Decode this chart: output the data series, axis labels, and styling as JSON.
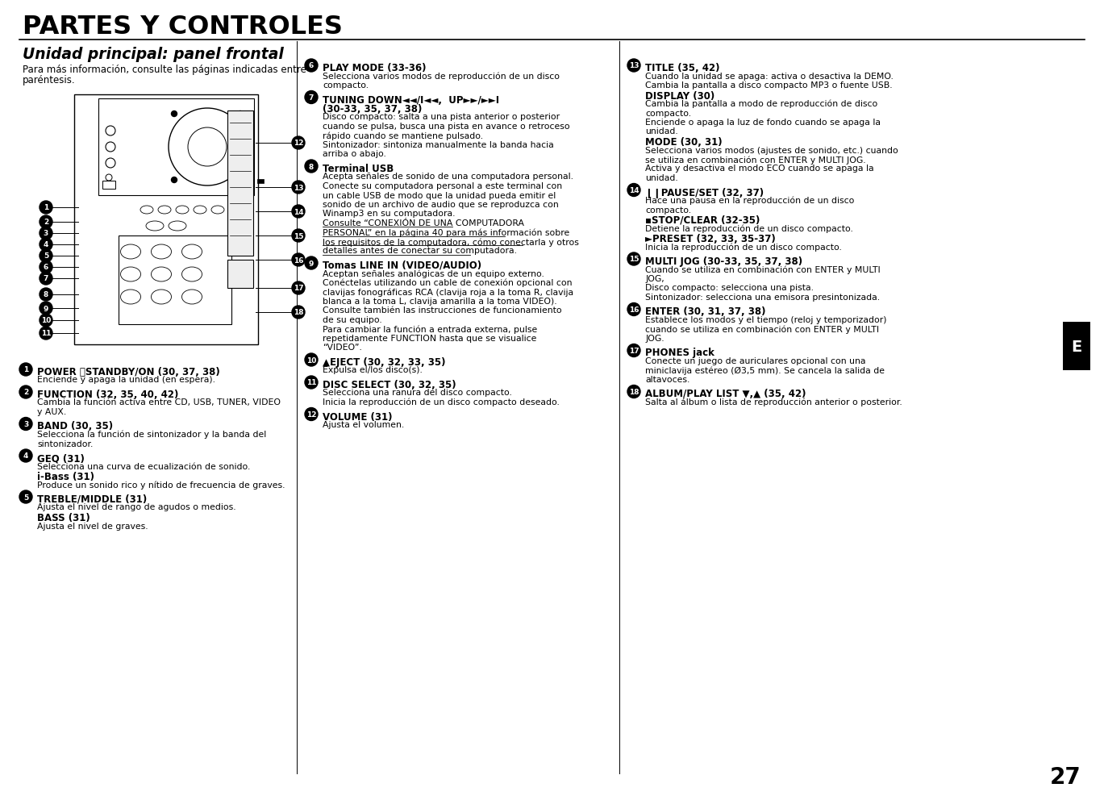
{
  "title": "PARTES Y CONTROLES",
  "subtitle": "Unidad principal: panel frontal",
  "intro": "Para más información, consulte las páginas indicadas entre\nparéntesis.",
  "page_number": "27",
  "background_color": "#ffffff",
  "col1_items": [
    {
      "num": "1",
      "header": "POWER ⏽STANDBY/ON (30, 37, 38)",
      "body": "Enciende y apaga la unidad (en espera)."
    },
    {
      "num": "2",
      "header": "FUNCTION (32, 35, 40, 42)",
      "body": "Cambia la función activa entre CD, USB, TUNER, VIDEO\ny AUX."
    },
    {
      "num": "3",
      "header": "BAND (30, 35)",
      "body": "Selecciona la función de sintonizador y la banda del\nsintonizador."
    },
    {
      "num": "4",
      "header": "GEQ (31)",
      "body": "Selecciona una curva de ecualización de sonido.",
      "subheader": "i-Bass (31)",
      "subbody": "Produce un sonido rico y nítido de frecuencia de graves."
    },
    {
      "num": "5",
      "header": "TREBLE/MIDDLE (31)",
      "body": "Ajusta el nivel de rango de agudos o medios.",
      "subheader": "BASS (31)",
      "subbody": "Ajusta el nivel de graves."
    }
  ],
  "col2_items": [
    {
      "num": "6",
      "header": "PLAY MODE (33-36)",
      "body": "Selecciona varios modos de reproducción de un disco\ncompacto."
    },
    {
      "num": "7",
      "header": "TUNING DOWN◄◄/I◄◄,  UP►►/►►I\n(30-33, 35, 37, 38)",
      "body": "Disco compacto: salta a una pista anterior o posterior\ncuando se pulsa, busca una pista en avance o retroceso\nrápido cuando se mantiene pulsado.\nSintonizador: sintoniza manualmente la banda hacia\narriba o abajo."
    },
    {
      "num": "8",
      "header": "Terminal USB",
      "body": "Acepta señales de sonido de una computadora personal.\nConecte su computadora personal a este terminal con\nun cable USB de modo que la unidad pueda emitir el\nsonido de un archivo de audio que se reproduzca con\nWinamp3 en su computadora.",
      "underline_body": "Consulte “CONEXIÓN DE UNA COMPUTADORA\nPERSONAL” en la página 40 para más información sobre\nlos requisitos de la computadora, cómo conectarla y otros\ndetalles antes de conectar su computadora."
    },
    {
      "num": "9",
      "header": "Tomas LINE IN (VIDEO/AUDIO)",
      "body": "Aceptan señales analógicas de un equipo externo.\nConéctelas utilizando un cable de conexión opcional con\nclavijas fonográficas RCA (clavija roja a la toma R, clavija\nblanca a la toma L, clavija amarilla a la toma VIDEO).\nConsulte también las instrucciones de funcionamiento\nde su equipo.\nPara cambiar la función a entrada externa, pulse\nrepetidamente FUNCTION hasta que se visualice\n“VIDEO”."
    },
    {
      "num": "10",
      "header": "▲EJECT (30, 32, 33, 35)",
      "body": "Expulsa el/los disco(s)."
    },
    {
      "num": "11",
      "header": "DISC SELECT (30, 32, 35)",
      "body": "Selecciona una ranura del disco compacto.\nInicia la reproducción de un disco compacto deseado."
    },
    {
      "num": "12",
      "header": "VOLUME (31)",
      "body": "Ajusta el volumen."
    }
  ],
  "col3_items": [
    {
      "num": "13",
      "header": "TITLE (35, 42)",
      "body": "Cuando la unidad se apaga: activa o desactiva la DEMO.\nCambia la pantalla a disco compacto MP3 o fuente USB.",
      "subheader": "DISPLAY (30)",
      "subbody": "Cambia la pantalla a modo de reproducción de disco\ncompacto.\nEnciende o apaga la luz de fondo cuando se apaga la\nunidad.",
      "subheader2": "MODE (30, 31)",
      "subbody2": "Selecciona varios modos (ajustes de sonido, etc.) cuando\nse utiliza en combinación con ENTER y MULTI JOG.\nActiva y desactiva el modo ECO cuando se apaga la\nunidad."
    },
    {
      "num": "14",
      "header": "❙❙PAUSE/SET (32, 37)",
      "body": "Hace una pausa en la reproducción de un disco\ncompacto.",
      "subheader": "▪STOP/CLEAR (32-35)",
      "subbody": "Detiene la reproducción de un disco compacto.",
      "subheader2": "►PRESET (32, 33, 35-37)",
      "subbody2": "Inicia la reproducción de un disco compacto."
    },
    {
      "num": "15",
      "header": "MULTI JOG (30-33, 35, 37, 38)",
      "body": "Cuando se utiliza en combinación con ENTER y MULTI\nJOG,\nDisco compacto: selecciona una pista.\nSintonizador: selecciona una emisora presintonizada."
    },
    {
      "num": "16",
      "header": "ENTER (30, 31, 37, 38)",
      "body": "Establece los modos y el tiempo (reloj y temporizador)\ncuando se utiliza en combinación con ENTER y MULTI\nJOG."
    },
    {
      "num": "17",
      "header": "PHONES jack",
      "body": "Conecte un juego de auriculares opcional con una\nminiclavija estéreo (Ø3,5 mm). Se cancela la salida de\naltavoces."
    },
    {
      "num": "18",
      "header": "ALBUM/PLAY LIST ▼,▲ (35, 42)",
      "body": "Salta al álbum o lista de reproducción anterior o posterior."
    }
  ],
  "sidebar_label": "E"
}
